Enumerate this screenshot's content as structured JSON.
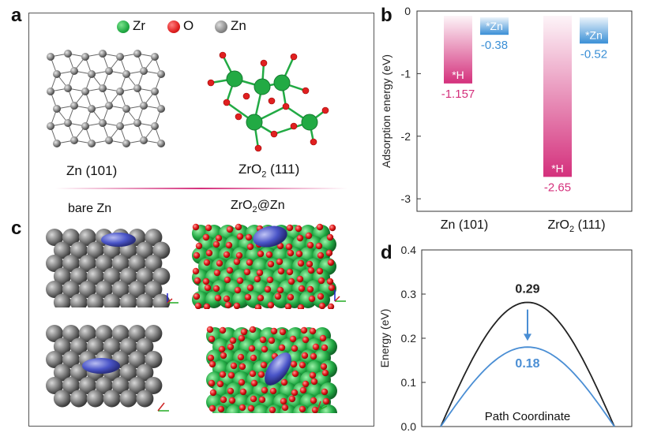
{
  "panel_a": {
    "letter": "a",
    "legend": [
      {
        "label": "Zr",
        "color": "#22aa44"
      },
      {
        "label": "O",
        "color": "#e02020"
      },
      {
        "label": "Zn",
        "color": "#888888"
      }
    ],
    "structure_labels": [
      {
        "main": "Zn (101)",
        "sub": ""
      },
      {
        "main": "ZrO",
        "sub": "2",
        "tail": " (111)"
      }
    ]
  },
  "panel_c": {
    "letter": "c",
    "labels": [
      {
        "main": "bare Zn",
        "sub": "",
        "tail": ""
      },
      {
        "main": "ZrO",
        "sub": "2",
        "tail": "@Zn"
      }
    ]
  },
  "panel_b": {
    "letter": "b",
    "chart_data": {
      "type": "bar",
      "categories": [
        "Zn (101)",
        "ZrO2 (111)"
      ],
      "category_display": [
        {
          "main": "Zn (101)",
          "sub": "",
          "tail": ""
        },
        {
          "main": "ZrO",
          "sub": "2",
          "tail": " (111)"
        }
      ],
      "series": [
        {
          "name": "*H",
          "values": [
            -1.157,
            -2.65
          ],
          "color": "#d4307c",
          "value_labels": [
            "-1.157",
            "-2.65"
          ]
        },
        {
          "name": "*Zn",
          "values": [
            -0.38,
            -0.52
          ],
          "color": "#3a8fd6",
          "value_labels": [
            "-0.38",
            "-0.52"
          ]
        }
      ],
      "ylabel": "Adsorption energy (eV)",
      "ylim": [
        -3.2,
        0
      ],
      "yticks": [
        "0",
        "-1",
        "-2",
        "-3"
      ],
      "ytick_values": [
        0,
        -1,
        -2,
        -3
      ]
    }
  },
  "panel_d": {
    "letter": "d",
    "chart_data": {
      "type": "line",
      "xlabel": "Path Coordinate",
      "ylabel": "Energy (eV)",
      "ylim": [
        0,
        0.4
      ],
      "yticks": [
        "0.0",
        "0.1",
        "0.2",
        "0.3",
        "0.4"
      ],
      "ytick_values": [
        0,
        0.1,
        0.2,
        0.3,
        0.4
      ],
      "series": [
        {
          "name": "",
          "peak": 0.29,
          "label": "0.29",
          "color": "#222222"
        },
        {
          "name": "",
          "peak": 0.18,
          "label": "0.18",
          "color": "#4a8ed4"
        }
      ]
    }
  }
}
